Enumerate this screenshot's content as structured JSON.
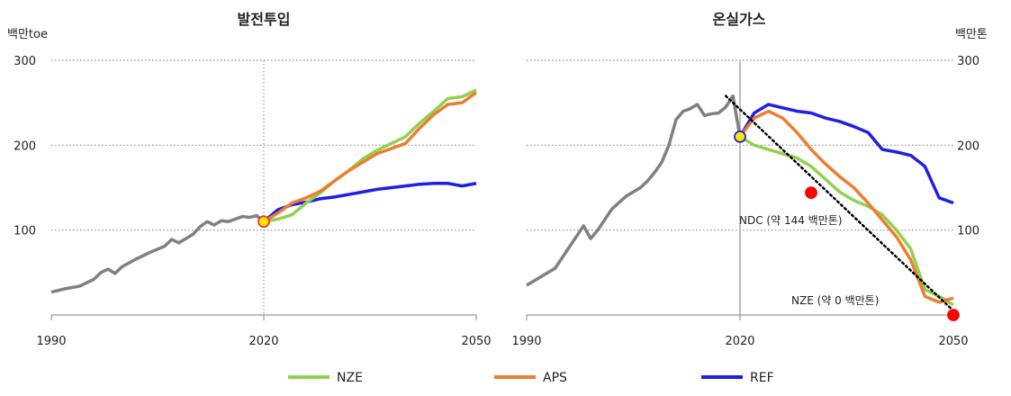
{
  "chart_data": [
    {
      "type": "line",
      "title": "발전투입",
      "unit_label": "백만toe",
      "xlim": [
        1990,
        2050
      ],
      "ylim": [
        0,
        300
      ],
      "x_ticks": [
        1990,
        2020,
        2050
      ],
      "y_ticks": [
        100,
        200,
        300
      ],
      "reference_year": 2020,
      "grid": "horizontal-dotted",
      "history": {
        "color": "#808080",
        "x": [
          1990,
          1992,
          1994,
          1996,
          1997,
          1998,
          1999,
          2000,
          2002,
          2004,
          2006,
          2007,
          2008,
          2010,
          2011,
          2012,
          2013,
          2014,
          2015,
          2016,
          2017,
          2018,
          2019,
          2020
        ],
        "y": [
          27,
          31,
          34,
          42,
          50,
          54,
          49,
          57,
          66,
          74,
          81,
          89,
          85,
          95,
          104,
          110,
          106,
          111,
          110,
          113,
          116,
          115,
          117,
          110
        ]
      },
      "series": [
        {
          "name": "NZE",
          "color": "#92D050",
          "x": [
            2020,
            2022,
            2024,
            2026,
            2028,
            2030,
            2032,
            2034,
            2036,
            2038,
            2040,
            2042,
            2044,
            2046,
            2048,
            2050
          ],
          "y": [
            110,
            113,
            118,
            132,
            144,
            158,
            170,
            184,
            194,
            202,
            210,
            226,
            240,
            255,
            257,
            265
          ]
        },
        {
          "name": "APS",
          "color": "#ED7D31",
          "x": [
            2020,
            2022,
            2024,
            2026,
            2028,
            2030,
            2032,
            2034,
            2036,
            2038,
            2040,
            2042,
            2044,
            2046,
            2048,
            2050
          ],
          "y": [
            110,
            120,
            132,
            138,
            146,
            158,
            170,
            180,
            190,
            196,
            202,
            220,
            236,
            248,
            250,
            262
          ]
        },
        {
          "name": "REF",
          "color": "#1F1FE6",
          "x": [
            2020,
            2022,
            2024,
            2026,
            2028,
            2030,
            2032,
            2034,
            2036,
            2038,
            2040,
            2042,
            2044,
            2046,
            2048,
            2050
          ],
          "y": [
            110,
            124,
            130,
            133,
            137,
            139,
            142,
            145,
            148,
            150,
            152,
            154,
            155,
            155,
            152,
            155
          ]
        }
      ],
      "markers": [
        {
          "x": 2020,
          "y": 110,
          "fill": "#FFE600",
          "stroke": "#E53935"
        }
      ]
    },
    {
      "type": "line",
      "title": "온실가스",
      "unit_label": "백만톤",
      "xlim": [
        1990,
        2050
      ],
      "ylim": [
        0,
        300
      ],
      "x_ticks": [
        1990,
        2020,
        2050
      ],
      "y_ticks": [
        100,
        200,
        300
      ],
      "reference_year": 2020,
      "grid": "horizontal-dotted",
      "history": {
        "color": "#808080",
        "x": [
          1990,
          1992,
          1994,
          1996,
          1998,
          1999,
          2000,
          2002,
          2004,
          2005,
          2006,
          2007,
          2008,
          2009,
          2010,
          2011,
          2012,
          2013,
          2014,
          2015,
          2016,
          2017,
          2018,
          2019,
          2020
        ],
        "y": [
          35,
          45,
          55,
          80,
          105,
          90,
          100,
          125,
          140,
          145,
          150,
          158,
          168,
          180,
          200,
          230,
          240,
          243,
          248,
          235,
          237,
          238,
          245,
          258,
          210
        ]
      },
      "series": [
        {
          "name": "NZE",
          "color": "#92D050",
          "x": [
            2020,
            2022,
            2024,
            2026,
            2028,
            2030,
            2032,
            2034,
            2036,
            2038,
            2040,
            2042,
            2044,
            2046,
            2048,
            2050
          ],
          "y": [
            210,
            200,
            195,
            190,
            185,
            175,
            160,
            145,
            135,
            128,
            118,
            100,
            78,
            30,
            22,
            12
          ]
        },
        {
          "name": "APS",
          "color": "#ED7D31",
          "x": [
            2020,
            2022,
            2024,
            2026,
            2028,
            2030,
            2032,
            2034,
            2036,
            2038,
            2040,
            2042,
            2044,
            2046,
            2048,
            2050
          ],
          "y": [
            210,
            232,
            240,
            232,
            215,
            195,
            178,
            163,
            150,
            132,
            112,
            92,
            65,
            22,
            15,
            20
          ]
        },
        {
          "name": "REF",
          "color": "#1F1FE6",
          "x": [
            2020,
            2022,
            2024,
            2026,
            2028,
            2030,
            2032,
            2034,
            2036,
            2038,
            2040,
            2042,
            2044,
            2046,
            2048,
            2050
          ],
          "y": [
            210,
            238,
            248,
            244,
            240,
            238,
            232,
            228,
            222,
            215,
            195,
            192,
            188,
            175,
            138,
            132
          ]
        }
      ],
      "trend_line": {
        "x": [
          2018,
          2050
        ],
        "y": [
          258,
          5
        ],
        "style": "dotted",
        "color": "#000000"
      },
      "markers": [
        {
          "x": 2020,
          "y": 210,
          "fill": "#FFE600",
          "stroke": "#1F1FE6"
        },
        {
          "x": 2030,
          "y": 144,
          "fill": "#FF0000",
          "stroke": "#FF0000"
        },
        {
          "x": 2050,
          "y": 0,
          "fill": "#FF0000",
          "stroke": "#FF0000"
        }
      ],
      "annotations": [
        {
          "text": "NDC (약 144 백만톤)",
          "x": 2030,
          "y": 144
        },
        {
          "text": "NZE (약 0 백만톤)",
          "x": 2050,
          "y": 0
        }
      ]
    }
  ],
  "legend": {
    "placement": "bottom",
    "entries": [
      {
        "label": "NZE",
        "color": "#92D050"
      },
      {
        "label": "APS",
        "color": "#ED7D31"
      },
      {
        "label": "REF",
        "color": "#1F1FE6"
      }
    ]
  }
}
